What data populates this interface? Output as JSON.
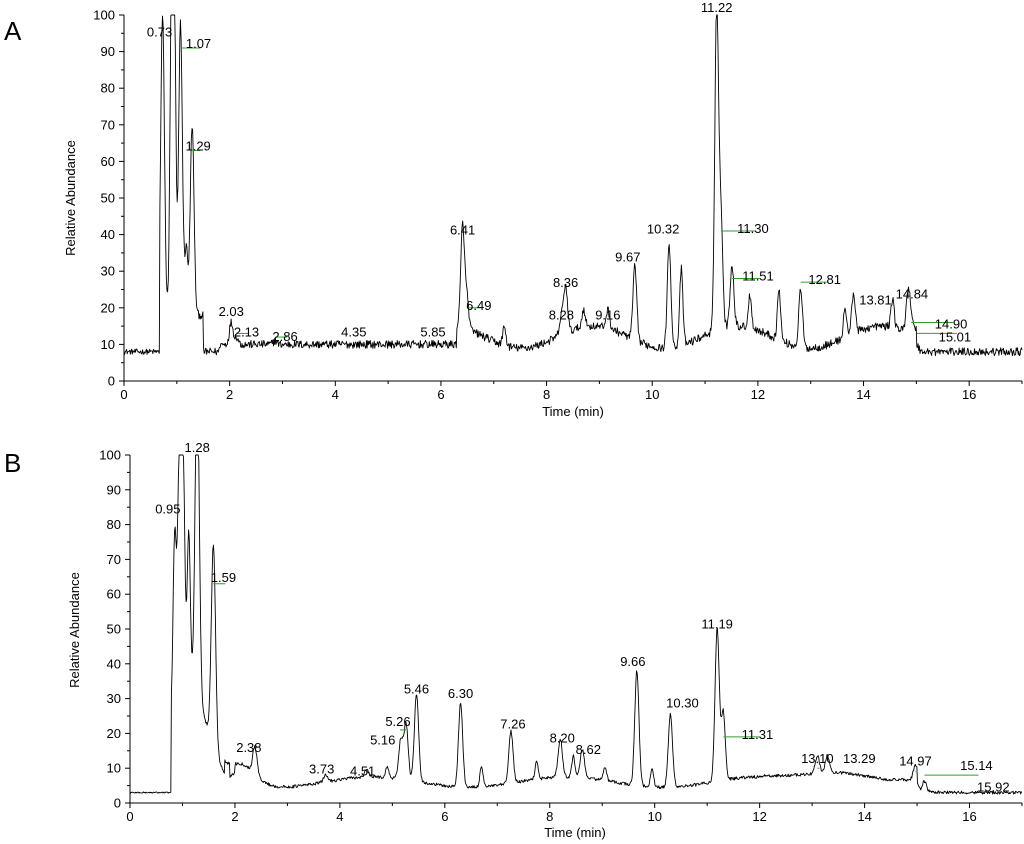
{
  "chart_data": [
    {
      "type": "line",
      "panel_label": "A",
      "xlabel": "Time (min)",
      "ylabel": "Relative Abundance",
      "xlim": [
        0,
        17
      ],
      "ylim": [
        0,
        100
      ],
      "xticks": [
        "0",
        "2",
        "4",
        "6",
        "8",
        "10",
        "12",
        "14",
        "16"
      ],
      "yticks": [
        "0",
        "10",
        "20",
        "30",
        "40",
        "50",
        "60",
        "70",
        "80",
        "90",
        "100"
      ],
      "baseline": 8,
      "peaks": [
        {
          "label": "0.73",
          "x": 0.73,
          "y": 93
        },
        {
          "label": "1.07",
          "x": 1.07,
          "y": 91
        },
        {
          "label": "1.29",
          "x": 1.29,
          "y": 63
        },
        {
          "label": "2.03",
          "x": 2.03,
          "y": 17
        },
        {
          "label": "2.13",
          "x": 2.13,
          "y": 13
        },
        {
          "label": "2.86",
          "x": 2.86,
          "y": 12
        },
        {
          "label": "4.35",
          "x": 4.35,
          "y": 11
        },
        {
          "label": "5.85",
          "x": 5.85,
          "y": 11
        },
        {
          "label": "6.41",
          "x": 6.41,
          "y": 39
        },
        {
          "label": "6.49",
          "x": 6.49,
          "y": 20
        },
        {
          "label": "8.28",
          "x": 8.28,
          "y": 16
        },
        {
          "label": "8.36",
          "x": 8.36,
          "y": 24
        },
        {
          "label": "9.16",
          "x": 9.16,
          "y": 16
        },
        {
          "label": "9.67",
          "x": 9.67,
          "y": 31
        },
        {
          "label": "10.32",
          "x": 10.32,
          "y": 39
        },
        {
          "label": "11.22",
          "x": 11.22,
          "y": 100
        },
        {
          "label": "11.30",
          "x": 11.3,
          "y": 41
        },
        {
          "label": "11.51",
          "x": 11.51,
          "y": 28
        },
        {
          "label": "12.81",
          "x": 12.81,
          "y": 27
        },
        {
          "label": "13.81",
          "x": 13.81,
          "y": 22
        },
        {
          "label": "14.84",
          "x": 14.84,
          "y": 22
        },
        {
          "label": "14.90",
          "x": 14.9,
          "y": 16
        },
        {
          "label": "15.01",
          "x": 15.01,
          "y": 13
        }
      ]
    },
    {
      "type": "line",
      "panel_label": "B",
      "xlabel": "Time (min)",
      "ylabel": "Relative Abundance",
      "xlim": [
        0,
        17
      ],
      "ylim": [
        0,
        100
      ],
      "xticks": [
        "0",
        "2",
        "4",
        "6",
        "8",
        "10",
        "12",
        "14",
        "16"
      ],
      "yticks": [
        "0",
        "10",
        "20",
        "30",
        "40",
        "50",
        "60",
        "70",
        "80",
        "90",
        "100"
      ],
      "baseline": 3,
      "peaks": [
        {
          "label": "0.95",
          "x": 0.95,
          "y": 82
        },
        {
          "label": "1.28",
          "x": 1.28,
          "y": 100
        },
        {
          "label": "1.59",
          "x": 1.59,
          "y": 63
        },
        {
          "label": "2.38",
          "x": 2.38,
          "y": 13
        },
        {
          "label": "3.73",
          "x": 3.73,
          "y": 7
        },
        {
          "label": "4.51",
          "x": 4.51,
          "y": 7
        },
        {
          "label": "5.16",
          "x": 5.16,
          "y": 16
        },
        {
          "label": "5.26",
          "x": 5.26,
          "y": 21
        },
        {
          "label": "5.46",
          "x": 5.46,
          "y": 30
        },
        {
          "label": "6.30",
          "x": 6.3,
          "y": 29
        },
        {
          "label": "7.26",
          "x": 7.26,
          "y": 20
        },
        {
          "label": "8.20",
          "x": 8.2,
          "y": 16
        },
        {
          "label": "8.62",
          "x": 8.62,
          "y": 13
        },
        {
          "label": "9.66",
          "x": 9.66,
          "y": 38
        },
        {
          "label": "10.30",
          "x": 10.3,
          "y": 26
        },
        {
          "label": "11.19",
          "x": 11.19,
          "y": 49
        },
        {
          "label": "11.31",
          "x": 11.31,
          "y": 19
        },
        {
          "label": "13.10",
          "x": 13.1,
          "y": 10
        },
        {
          "label": "13.29",
          "x": 13.29,
          "y": 10
        },
        {
          "label": "14.97",
          "x": 14.97,
          "y": 9
        },
        {
          "label": "15.14",
          "x": 15.14,
          "y": 8
        },
        {
          "label": "15.92",
          "x": 15.92,
          "y": 5
        }
      ]
    }
  ]
}
